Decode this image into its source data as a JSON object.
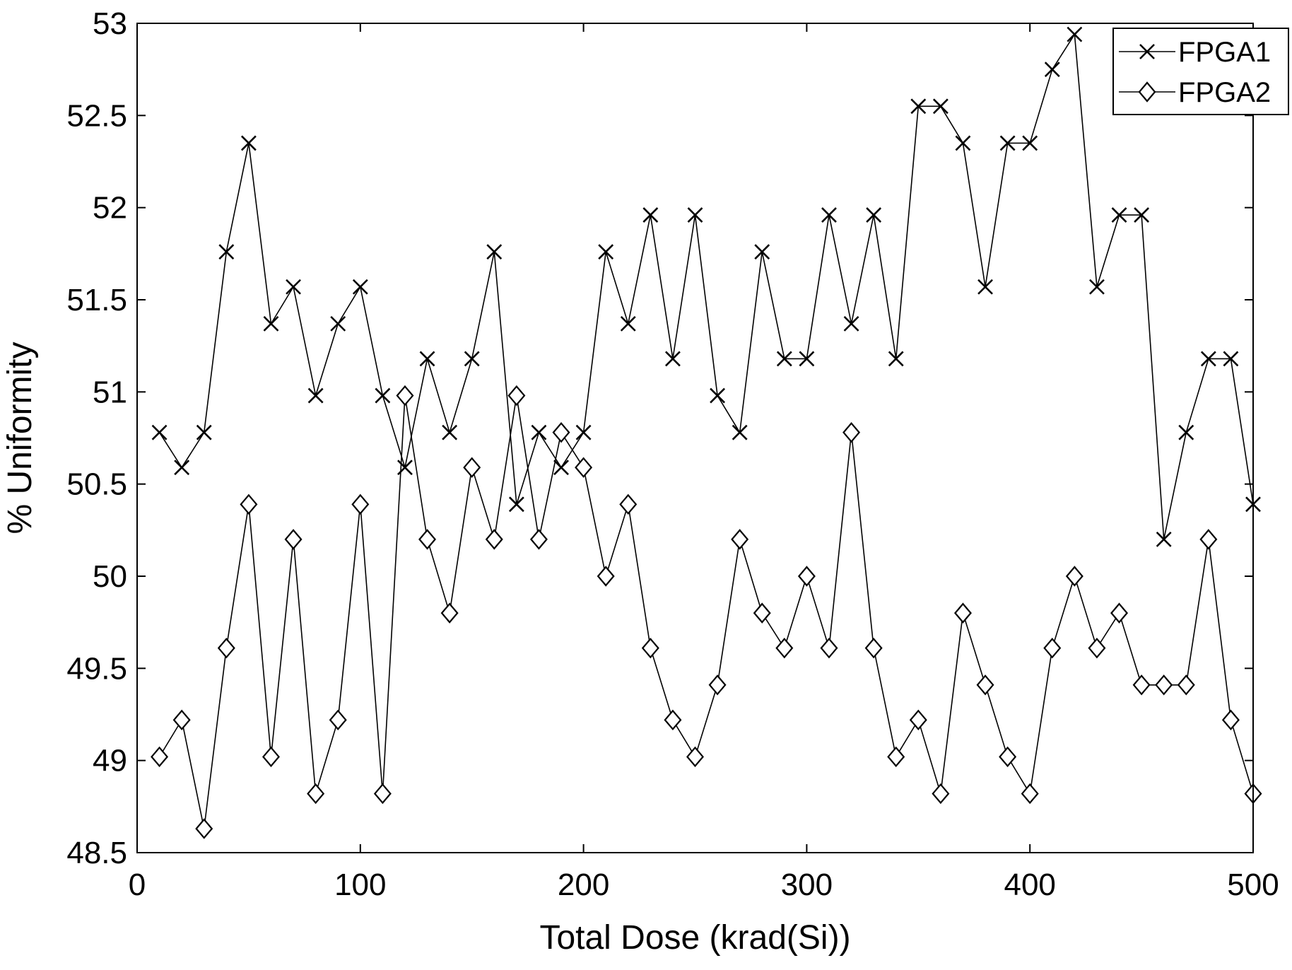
{
  "chart_data": {
    "type": "line",
    "title": "",
    "xlabel": "Total Dose (krad(Si))",
    "ylabel": "% Uniformity",
    "xlim": [
      0,
      500
    ],
    "ylim": [
      48.5,
      53
    ],
    "xticks": [
      0,
      100,
      200,
      300,
      400,
      500
    ],
    "yticks": [
      48.5,
      49,
      49.5,
      50,
      50.5,
      51,
      51.5,
      52,
      52.5,
      53
    ],
    "grid": false,
    "legend_position": "top-right",
    "x": [
      10,
      20,
      30,
      40,
      50,
      60,
      70,
      80,
      90,
      100,
      110,
      120,
      130,
      140,
      150,
      160,
      170,
      180,
      190,
      200,
      210,
      220,
      230,
      240,
      250,
      260,
      270,
      280,
      290,
      300,
      310,
      320,
      330,
      340,
      350,
      360,
      370,
      380,
      390,
      400,
      410,
      420,
      430,
      440,
      450,
      460,
      470,
      480,
      490,
      500
    ],
    "series": [
      {
        "name": "FPGA1",
        "marker": "x",
        "values": [
          50.78,
          50.59,
          50.78,
          51.76,
          52.35,
          51.37,
          51.57,
          50.98,
          51.37,
          51.57,
          50.98,
          50.59,
          51.18,
          50.78,
          51.18,
          51.76,
          50.39,
          50.78,
          50.59,
          50.78,
          51.76,
          51.37,
          51.96,
          51.18,
          51.96,
          50.98,
          50.78,
          51.76,
          51.18,
          51.18,
          51.96,
          51.37,
          51.96,
          51.18,
          52.55,
          52.55,
          52.35,
          51.57,
          52.35,
          52.35,
          52.75,
          52.94,
          51.57,
          51.96,
          51.96,
          50.2,
          50.78,
          51.18,
          51.18,
          50.39
        ]
      },
      {
        "name": "FPGA2",
        "marker": "diamond",
        "values": [
          49.02,
          49.22,
          48.63,
          49.61,
          50.39,
          49.02,
          50.2,
          48.82,
          49.22,
          50.39,
          48.82,
          50.98,
          50.2,
          49.8,
          50.59,
          50.2,
          50.98,
          50.2,
          50.78,
          50.59,
          50.0,
          50.39,
          49.61,
          49.22,
          49.02,
          49.41,
          50.2,
          49.8,
          49.61,
          50.0,
          49.61,
          50.78,
          49.61,
          49.02,
          49.22,
          48.82,
          49.8,
          49.41,
          49.02,
          48.82,
          49.61,
          50.0,
          49.61,
          49.8,
          49.41,
          49.41,
          49.41,
          50.2,
          49.22,
          48.82
        ]
      }
    ]
  }
}
